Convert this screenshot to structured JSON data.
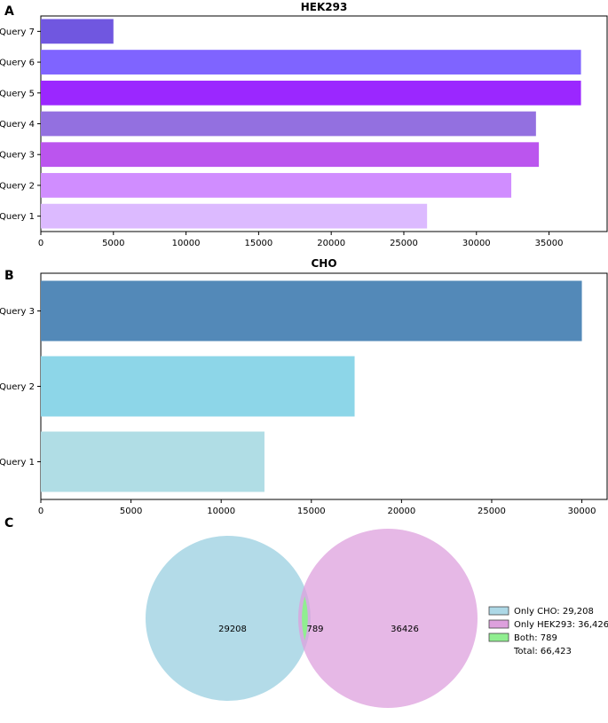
{
  "panels": {
    "a": {
      "letter": "A"
    },
    "b": {
      "letter": "B"
    },
    "c": {
      "letter": "C"
    }
  },
  "chart_data": [
    {
      "type": "bar",
      "orientation": "horizontal",
      "title": "HEK293",
      "xlabel": "",
      "ylabel": "",
      "categories": [
        "Query 1",
        "Query 2",
        "Query 3",
        "Query 4",
        "Query 5",
        "Query 6",
        "Query 7"
      ],
      "values": [
        26600,
        32400,
        34300,
        34100,
        37200,
        37200,
        5000
      ],
      "colors": [
        "#dcbaff",
        "#d08dff",
        "#bb55ee",
        "#9370e0",
        "#9b27ff",
        "#7f64ff",
        "#7057e0"
      ],
      "xlim": [
        0,
        39000
      ],
      "xticks": [
        0,
        5000,
        10000,
        15000,
        20000,
        25000,
        30000,
        35000
      ],
      "grid": false
    },
    {
      "type": "bar",
      "orientation": "horizontal",
      "title": "CHO",
      "xlabel": "",
      "ylabel": "",
      "categories": [
        "Query 1",
        "Query 2",
        "Query 3"
      ],
      "values": [
        12400,
        17400,
        30000
      ],
      "colors": [
        "#b0dde5",
        "#8dd6e8",
        "#5389b8"
      ],
      "xlim": [
        0,
        31400
      ],
      "xticks": [
        0,
        5000,
        10000,
        15000,
        20000,
        25000,
        30000
      ],
      "grid": false
    },
    {
      "type": "venn",
      "sets": [
        {
          "name": "CHO",
          "only": 29208,
          "color": "#add8e6"
        },
        {
          "name": "HEK293",
          "only": 36426,
          "color": "#dda0dd"
        }
      ],
      "intersection": 789,
      "intersection_color": "#90ee90",
      "labels": {
        "left": "29208",
        "both": "789",
        "right": "36426"
      },
      "legend": [
        {
          "label": "Only CHO: 29,208",
          "color": "#add8e6"
        },
        {
          "label": "Only HEK293: 36,426",
          "color": "#dda0dd"
        },
        {
          "label": "Both: 789",
          "color": "#90ee90"
        },
        {
          "label": "Total: 66,423",
          "color": ""
        }
      ]
    }
  ]
}
